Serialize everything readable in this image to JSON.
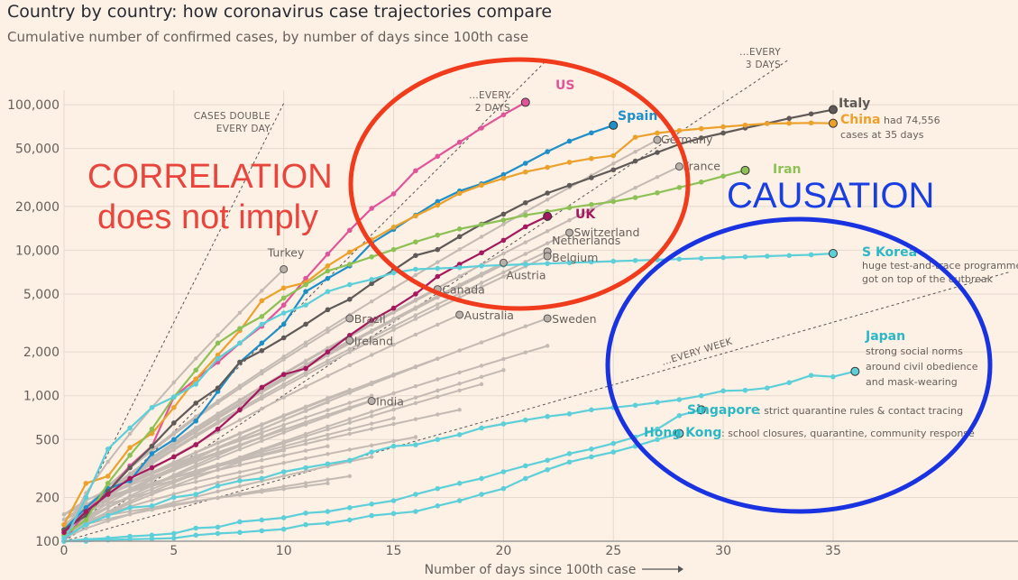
{
  "header": {
    "title": "Country by country: how coronavirus case trajectories compare",
    "subtitle": "Cumulative number of confirmed cases, by number of days since 100th case"
  },
  "annotations": {
    "correlation_line1": "CORRELATION",
    "correlation_line2": "does not imply",
    "causation": "CAUSATION",
    "red_ellipse_color": "#f03b1c",
    "blue_ellipse_color": "#1a33e0"
  },
  "reference_lines": [
    {
      "label_lines": [
        "CASES DOUBLE",
        "EVERY DAY"
      ],
      "doubling_days": 1
    },
    {
      "label_lines": [
        "...EVERY",
        "2 DAYS"
      ],
      "doubling_days": 2
    },
    {
      "label_lines": [
        "...EVERY",
        "3 DAYS"
      ],
      "doubling_days": 3
    },
    {
      "label_lines": [
        "...EVERY WEEK"
      ],
      "doubling_days": 7
    }
  ],
  "chart_data": {
    "type": "line",
    "title": "Country by country: how coronavirus case trajectories compare",
    "subtitle": "Cumulative number of confirmed cases, by number of days since 100th case",
    "xlabel": "Number of days since 100th case",
    "ylabel": "",
    "yscale": "log",
    "xlim": [
      0,
      41
    ],
    "ylim": [
      100,
      100000
    ],
    "xticks": [
      0,
      5,
      10,
      15,
      20,
      25,
      30,
      35
    ],
    "yticks": [
      100,
      200,
      500,
      1000,
      2000,
      5000,
      10000,
      20000,
      50000,
      100000
    ],
    "ytick_labels": [
      "100",
      "200",
      "500",
      "1,000",
      "2,000",
      "5,000",
      "10,000",
      "20,000",
      "50,000",
      "100,000"
    ],
    "grid": true,
    "highlight_series": [
      {
        "name": "US",
        "color": "#e0559a",
        "label_style": "bold",
        "values": [
          100,
          160,
          220,
          330,
          450,
          980,
          1300,
          1700,
          2300,
          3000,
          4200,
          6400,
          9400,
          13700,
          19400,
          24400,
          35200,
          44200,
          55200,
          69200,
          85300,
          103900
        ]
      },
      {
        "name": "Spain",
        "color": "#1f8fc8",
        "label_style": "bold",
        "values": [
          120,
          170,
          230,
          260,
          400,
          500,
          670,
          1070,
          1700,
          2300,
          3100,
          5200,
          6400,
          7800,
          11200,
          13900,
          17400,
          21600,
          25500,
          28600,
          33100,
          39600,
          47600,
          56200,
          64100,
          72200
        ]
      },
      {
        "name": "Italy",
        "color": "#5f5a57",
        "label_style": "bold",
        "values": [
          120,
          150,
          220,
          320,
          450,
          650,
          890,
          1130,
          1700,
          2040,
          2500,
          3100,
          3900,
          4600,
          5900,
          7300,
          9200,
          10100,
          12400,
          15100,
          17700,
          21200,
          24700,
          27900,
          31500,
          35700,
          41000,
          47000,
          53500,
          59100,
          63900,
          69200,
          74400,
          80600,
          86500,
          92500
        ]
      },
      {
        "name": "China",
        "color": "#eba12b",
        "label_style": "bold",
        "note": "had 74,556 cases at 35 days",
        "values": [
          130,
          250,
          280,
          440,
          550,
          830,
          1300,
          1900,
          2800,
          4500,
          5500,
          6000,
          7800,
          9700,
          11800,
          14400,
          17200,
          20400,
          24600,
          28000,
          31200,
          34500,
          37100,
          40200,
          42700,
          44700,
          59800,
          63900,
          66400,
          68500,
          70500,
          72400,
          74200,
          74600,
          75000,
          74556
        ]
      },
      {
        "name": "Iran",
        "color": "#8dc156",
        "label_style": "bold",
        "values": [
          110,
          140,
          250,
          390,
          590,
          980,
          1500,
          2300,
          2900,
          3500,
          4700,
          5800,
          7200,
          8000,
          9000,
          10100,
          11400,
          12700,
          14000,
          15000,
          16100,
          17400,
          18400,
          19600,
          20600,
          21600,
          23000,
          24800,
          27000,
          29400,
          32300,
          35400
        ]
      },
      {
        "name": "UK",
        "color": "#a4185d",
        "label_style": "bold",
        "values": [
          115,
          160,
          210,
          270,
          320,
          380,
          460,
          590,
          800,
          1140,
          1400,
          1540,
          2000,
          2600,
          3300,
          4000,
          5000,
          6600,
          8000,
          9600,
          11700,
          14500,
          17100
        ]
      },
      {
        "name": "S Korea",
        "color": "#5ccfd9",
        "label_style": "bold",
        "values": [
          100,
          200,
          430,
          600,
          830,
          980,
          1200,
          1800,
          2300,
          3100,
          3700,
          4200,
          5200,
          5800,
          6300,
          7000,
          7400,
          7500,
          7600,
          7800,
          7900,
          8000,
          8100,
          8200,
          8300,
          8400,
          8500,
          8600,
          8700,
          8800,
          8900,
          9000,
          9100,
          9200,
          9300,
          9500
        ]
      },
      {
        "name": "Japan",
        "color": "#5ccfd9",
        "label_style": "bold",
        "note": "strong social norms around civil obedience and mask-wearing",
        "values": [
          105,
          130,
          150,
          170,
          175,
          200,
          210,
          240,
          260,
          270,
          300,
          320,
          340,
          360,
          410,
          450,
          460,
          500,
          540,
          600,
          640,
          680,
          720,
          750,
          800,
          830,
          860,
          900,
          940,
          1000,
          1080,
          1090,
          1130,
          1230,
          1380,
          1350,
          1470
        ]
      },
      {
        "name": "Singapore",
        "color": "#5ccfd9",
        "label_style": "bold",
        "note": "strict quarantine rules & contact tracing",
        "values": [
          100,
          103,
          105,
          108,
          110,
          113,
          123,
          125,
          136,
          140,
          145,
          156,
          160,
          170,
          180,
          190,
          210,
          230,
          250,
          270,
          300,
          330,
          360,
          400,
          430,
          470,
          520,
          590,
          730,
          800
        ]
      },
      {
        "name": "Hong Kong",
        "color": "#5ccfd9",
        "label_style": "bold",
        "note": "school closures, quarantine, community response",
        "values": [
          100,
          100,
          102,
          103,
          104,
          105,
          110,
          113,
          115,
          118,
          121,
          130,
          133,
          140,
          150,
          155,
          160,
          175,
          190,
          210,
          230,
          270,
          310,
          350,
          380,
          410,
          450,
          500,
          550
        ]
      }
    ],
    "grey_labels": [
      {
        "name": "Turkey",
        "x": 10,
        "y": 7400
      },
      {
        "name": "Germany",
        "x": 27,
        "y": 57300
      },
      {
        "name": "France",
        "x": 28,
        "y": 37600
      },
      {
        "name": "Switzerland",
        "x": 23,
        "y": 13200
      },
      {
        "name": "Netherlands",
        "x": 22,
        "y": 9800
      },
      {
        "name": "Belgium",
        "x": 22,
        "y": 9100
      },
      {
        "name": "Austria",
        "x": 20,
        "y": 8200
      },
      {
        "name": "Canada",
        "x": 17,
        "y": 5400
      },
      {
        "name": "Brazil",
        "x": 13,
        "y": 3400
      },
      {
        "name": "Australia",
        "x": 18,
        "y": 3600
      },
      {
        "name": "Sweden",
        "x": 22,
        "y": 3400
      },
      {
        "name": "Ireland",
        "x": 13,
        "y": 2400
      },
      {
        "name": "India",
        "x": 14,
        "y": 920
      }
    ]
  }
}
